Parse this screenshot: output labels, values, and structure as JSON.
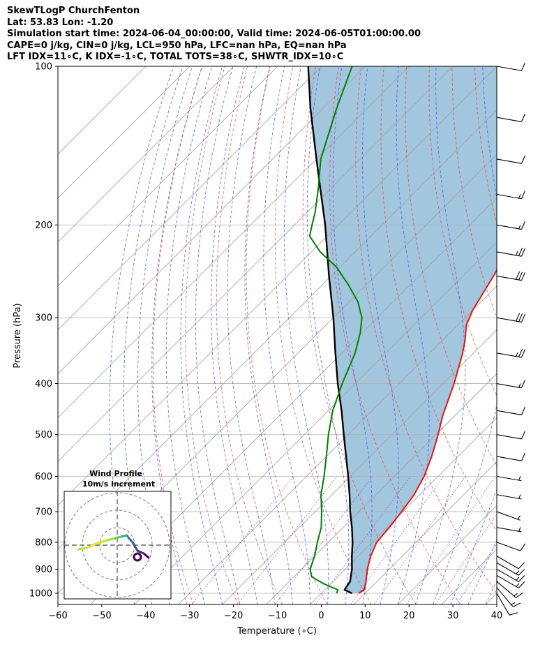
{
  "header": {
    "line1": "SkewTLogP ChurchFenton",
    "line2": "Lat: 53.83   Lon: -1.20",
    "line3": "Simulation start time: 2024-06-04_00:00:00, Valid time: 2024-06-05T01:00:00.00",
    "line4": "CAPE=0 j/kg, CIN=0 j/kg, LCL=950 hPa, LFC=nan hPa, EQ=nan hPa",
    "line5": "LFT IDX=11∘C, K IDX=-1∘C, TOTAL TOTS=38∘C, SHWTR_IDX=10∘C"
  },
  "chart_data": {
    "type": "line",
    "skewed": true,
    "log_y": true,
    "xlabel": "Temperature (∘C)",
    "ylabel": "Pressure (hPa)",
    "xlim": [
      -60,
      40
    ],
    "ylim": [
      1050,
      100
    ],
    "x_ticks": [
      -60,
      -50,
      -40,
      -30,
      -20,
      -10,
      0,
      10,
      20,
      30,
      40
    ],
    "y_ticks": [
      100,
      200,
      300,
      400,
      500,
      600,
      700,
      800,
      900,
      1000
    ],
    "grid": true,
    "colors": {
      "temperature": "#e8140f",
      "dewpoint": "#008000",
      "parcel": "#000000",
      "fill": "#a3c6df",
      "dry_adiabats": "#f04040",
      "moist_adiabats": "#4050f0",
      "mixing_ratio": "#8040c0",
      "isotherms": "#a0a0a0"
    },
    "series": [
      {
        "key": "temperature",
        "points": [
          [
            1000,
            8.5
          ],
          [
            985,
            9.0
          ],
          [
            950,
            7.5
          ],
          [
            900,
            5.0
          ],
          [
            850,
            2.8
          ],
          [
            800,
            1.0
          ],
          [
            750,
            0.5
          ],
          [
            700,
            -0.3
          ],
          [
            650,
            -1.3
          ],
          [
            600,
            -3.2
          ],
          [
            550,
            -6.0
          ],
          [
            500,
            -9.5
          ],
          [
            460,
            -12.8
          ],
          [
            400,
            -17.5
          ],
          [
            350,
            -22.5
          ],
          [
            330,
            -25.0
          ],
          [
            310,
            -28.0
          ],
          [
            290,
            -30.0
          ],
          [
            250,
            -33.0
          ],
          [
            220,
            -36.0
          ],
          [
            200,
            -39.0
          ],
          [
            180,
            -43.0
          ],
          [
            160,
            -47.0
          ],
          [
            150,
            -49.0
          ],
          [
            140,
            -51.5
          ],
          [
            130,
            -54.0
          ],
          [
            120,
            -55.0
          ],
          [
            110,
            -57.0
          ],
          [
            100,
            -60.0
          ]
        ]
      },
      {
        "key": "dewpoint",
        "points": [
          [
            1000,
            3.5
          ],
          [
            985,
            3.0
          ],
          [
            960,
            -1.5
          ],
          [
            930,
            -6.0
          ],
          [
            900,
            -8.0
          ],
          [
            850,
            -10.0
          ],
          [
            800,
            -12.5
          ],
          [
            750,
            -15.0
          ],
          [
            700,
            -18.5
          ],
          [
            650,
            -22.5
          ],
          [
            600,
            -26.0
          ],
          [
            550,
            -30.0
          ],
          [
            500,
            -34.5
          ],
          [
            450,
            -39.0
          ],
          [
            400,
            -43.0
          ],
          [
            350,
            -47.0
          ],
          [
            320,
            -50.5
          ],
          [
            300,
            -53.5
          ],
          [
            280,
            -58.0
          ],
          [
            260,
            -64.0
          ],
          [
            240,
            -71.0
          ],
          [
            225,
            -78.0
          ],
          [
            210,
            -84.0
          ],
          [
            200,
            -86.0
          ],
          [
            190,
            -88.0
          ],
          [
            170,
            -93.0
          ],
          [
            150,
            -99.0
          ],
          [
            120,
            -107.0
          ],
          [
            100,
            -113.0
          ]
        ]
      },
      {
        "key": "parcel",
        "points": [
          [
            1000,
            7.0
          ],
          [
            985,
            4.5
          ],
          [
            950,
            3.9
          ],
          [
            900,
            1.5
          ],
          [
            850,
            -1.5
          ],
          [
            800,
            -4.5
          ],
          [
            750,
            -8.0
          ],
          [
            700,
            -12.0
          ],
          [
            650,
            -16.0
          ],
          [
            600,
            -20.5
          ],
          [
            550,
            -25.5
          ],
          [
            500,
            -31.0
          ],
          [
            450,
            -37.0
          ],
          [
            400,
            -44.0
          ],
          [
            350,
            -51.5
          ],
          [
            300,
            -60.0
          ],
          [
            250,
            -70.5
          ],
          [
            200,
            -83.0
          ],
          [
            150,
            -100.0
          ],
          [
            120,
            -113.0
          ],
          [
            100,
            -123.0
          ]
        ]
      }
    ],
    "wind_barbs": {
      "pressures": [
        1000,
        975,
        950,
        925,
        900,
        875,
        850,
        800,
        750,
        700,
        650,
        600,
        550,
        500,
        450,
        400,
        350,
        300,
        250,
        225,
        200,
        175,
        150,
        125,
        100
      ],
      "speeds_kt": [
        10,
        15,
        15,
        15,
        15,
        15,
        10,
        10,
        5,
        5,
        5,
        5,
        10,
        10,
        10,
        15,
        25,
        30,
        30,
        25,
        15,
        15,
        10,
        10,
        10
      ],
      "directions_deg": [
        330,
        320,
        310,
        300,
        300,
        300,
        300,
        290,
        280,
        290,
        280,
        280,
        280,
        280,
        280,
        280,
        280,
        280,
        280,
        280,
        280,
        280,
        280,
        280,
        280
      ]
    },
    "hodograph": {
      "title": "Wind Profile",
      "subtitle": "10m/s increment",
      "rings_ms": [
        10,
        20,
        30
      ],
      "u": [
        4.5,
        3.8,
        2.9,
        2.2,
        1.6,
        1.4,
        0.5,
        -0.6,
        -1.8,
        -3.0,
        -4.3,
        -5.6
      ],
      "v": [
        -1.8,
        -1.2,
        -0.8,
        0.4,
        1.1,
        1.4,
        1.2,
        0.9,
        0.6,
        0.2,
        -0.4,
        -0.6
      ]
    }
  }
}
